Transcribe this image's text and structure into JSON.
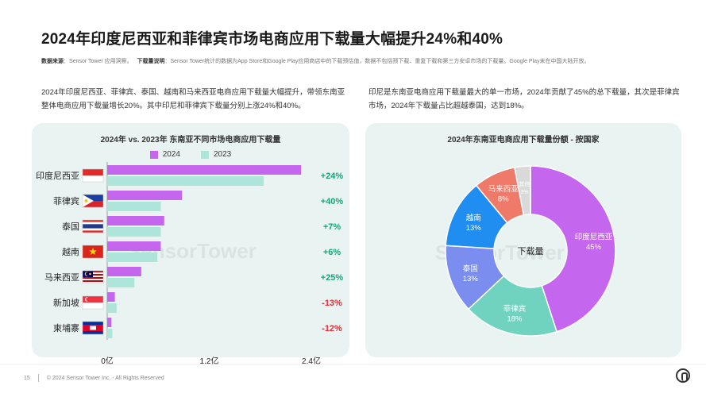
{
  "page": {
    "title": "2024年印度尼西亚和菲律宾市场电商应用下载量大幅提升24%和40%",
    "source_label": "数据来源",
    "source_text": "：Sensor Tower 应用洞察。",
    "note_label": "下载量说明",
    "note_text": "：Sensor Tower统计的数据为App Store和Google Play应用商店中的下载预估值，数据不包括预下载、重复下载和第三方安卓市场的下载量。Google Play未在中国大陆开放。",
    "para_left": "2024年印度尼西亚、菲律宾、泰国、越南和马来西亚电商应用下载量大幅提升，带领东南亚整体电商应用下载量增长20%。其中印尼和菲律宾下载量分别上涨24%和40%。",
    "para_right": "印尼是东南亚电商应用下载量最大的单一市场，2024年贡献了45%的总下载量，其次是菲律宾市场，2024年下载量占比超越泰国，达到18%。",
    "footer_page": "15",
    "footer_copy": "© 2024 Sensor Tower Inc. - All Rights Reserved",
    "watermark": "SensorTower"
  },
  "colors": {
    "s2024": "#c567ee",
    "s2023": "#aee5da",
    "positive": "#1aa37a",
    "negative": "#e0303a",
    "pie": [
      "#c567ee",
      "#6fd3bf",
      "#7b8ef0",
      "#1f8ef0",
      "#f07a6a",
      "#d9d9d9"
    ]
  },
  "chart_data": [
    {
      "type": "bar",
      "orientation": "horizontal",
      "title": "2024年 vs. 2023年 东南亚不同市场电商应用下载量",
      "categories": [
        "印度尼西亚",
        "菲律宾",
        "泰国",
        "越南",
        "马来西亚",
        "新加坡",
        "柬埔寨"
      ],
      "series": [
        {
          "name": "2024",
          "values": [
            2.28,
            0.88,
            0.67,
            0.63,
            0.4,
            0.09,
            0.05
          ]
        },
        {
          "name": "2023",
          "values": [
            1.84,
            0.63,
            0.63,
            0.59,
            0.32,
            0.11,
            0.06
          ]
        }
      ],
      "growth_labels": [
        "+24%",
        "+40%",
        "+7%",
        "+6%",
        "+25%",
        "-13%",
        "-12%"
      ],
      "flags": [
        "indonesia",
        "philippines",
        "thailand",
        "vietnam",
        "malaysia",
        "singapore",
        "cambodia"
      ],
      "xticks": [
        {
          "value": 0,
          "label": "0亿"
        },
        {
          "value": 1.2,
          "label": "1.2亿"
        },
        {
          "value": 2.4,
          "label": "2.4亿"
        }
      ],
      "xlim": [
        0,
        2.4
      ],
      "legend": "top-center"
    },
    {
      "type": "pie",
      "title": "2024年东南亚电商应用下载量份额 - 按国家",
      "center_label": "下载量",
      "slices": [
        {
          "label": "印度尼西亚",
          "value": 45,
          "text": "45%"
        },
        {
          "label": "菲律宾",
          "value": 18,
          "text": "18%"
        },
        {
          "label": "泰国",
          "value": 13,
          "text": "13%"
        },
        {
          "label": "越南",
          "value": 13,
          "text": "13%"
        },
        {
          "label": "马来西亚",
          "value": 8,
          "text": "8%"
        },
        {
          "label": "其他",
          "value": 3,
          "text": "3%"
        }
      ]
    }
  ]
}
